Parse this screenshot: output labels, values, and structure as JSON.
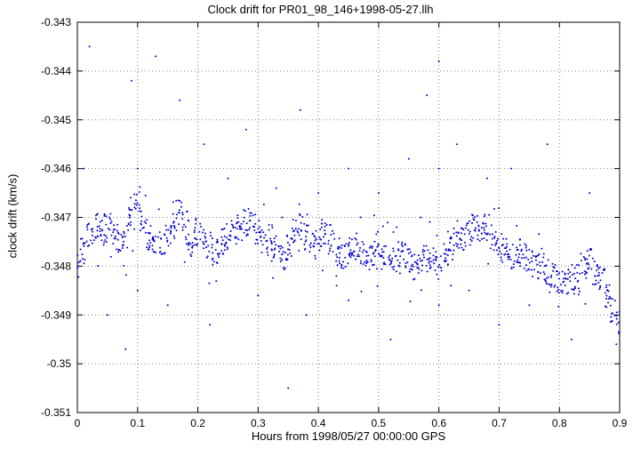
{
  "chart_data": {
    "type": "scatter",
    "title": "Clock drift for PR01_98_146+1998-05-27.llh",
    "xlabel": "Hours from 1998/05/27 00:00:00 GPS",
    "ylabel": "clock drift (km/s)",
    "xlim": [
      0,
      0.9
    ],
    "ylim": [
      -0.351,
      -0.343
    ],
    "grid": true,
    "legend_position": "none",
    "point_color": "#0000cc",
    "grid_color": "#808080",
    "axis_color": "#000000",
    "background": "#ffffff",
    "xticks": {
      "values": [
        0,
        0.1,
        0.2,
        0.3,
        0.4,
        0.5,
        0.6,
        0.7,
        0.8,
        0.9
      ],
      "labels": [
        "0",
        "0.1",
        "0.2",
        "0.3",
        "0.4",
        "0.5",
        "0.6",
        "0.7",
        "0.8",
        "0.9"
      ]
    },
    "yticks": {
      "values": [
        -0.351,
        -0.35,
        -0.349,
        -0.348,
        -0.347,
        -0.346,
        -0.345,
        -0.344,
        -0.343
      ],
      "labels": [
        "-0.351",
        "-0.35",
        "-0.349",
        "-0.348",
        "-0.347",
        "-0.346",
        "-0.345",
        "-0.344",
        "-0.343"
      ]
    },
    "series": [
      {
        "name": "clock drift",
        "style": "dense-dot-band",
        "trend_x": [
          0.0,
          0.01,
          0.02,
          0.03,
          0.04,
          0.05,
          0.06,
          0.07,
          0.08,
          0.09,
          0.1,
          0.11,
          0.12,
          0.13,
          0.14,
          0.15,
          0.16,
          0.17,
          0.18,
          0.19,
          0.2,
          0.21,
          0.22,
          0.23,
          0.24,
          0.25,
          0.26,
          0.27,
          0.28,
          0.29,
          0.3,
          0.31,
          0.32,
          0.33,
          0.34,
          0.35,
          0.36,
          0.37,
          0.38,
          0.39,
          0.4,
          0.41,
          0.42,
          0.43,
          0.44,
          0.45,
          0.46,
          0.47,
          0.48,
          0.49,
          0.5,
          0.51,
          0.52,
          0.53,
          0.54,
          0.55,
          0.56,
          0.57,
          0.58,
          0.59,
          0.6,
          0.61,
          0.62,
          0.63,
          0.64,
          0.65,
          0.66,
          0.67,
          0.68,
          0.69,
          0.7,
          0.71,
          0.72,
          0.73,
          0.74,
          0.75,
          0.76,
          0.77,
          0.78,
          0.79,
          0.8,
          0.81,
          0.82,
          0.83,
          0.84,
          0.85,
          0.86,
          0.87,
          0.88,
          0.89,
          0.9
        ],
        "trend_y": [
          -0.348,
          -0.3477,
          -0.3474,
          -0.3472,
          -0.3473,
          -0.3472,
          -0.3473,
          -0.3475,
          -0.3474,
          -0.347,
          -0.3466,
          -0.3471,
          -0.3474,
          -0.3476,
          -0.3475,
          -0.3474,
          -0.3472,
          -0.3469,
          -0.3473,
          -0.3475,
          -0.3473,
          -0.3474,
          -0.3476,
          -0.3477,
          -0.3475,
          -0.3474,
          -0.3473,
          -0.3472,
          -0.3471,
          -0.347,
          -0.3473,
          -0.3475,
          -0.3474,
          -0.3476,
          -0.3478,
          -0.3476,
          -0.3473,
          -0.3472,
          -0.3474,
          -0.3476,
          -0.3474,
          -0.3473,
          -0.3475,
          -0.3477,
          -0.3478,
          -0.3477,
          -0.3476,
          -0.3477,
          -0.3478,
          -0.3477,
          -0.3478,
          -0.3477,
          -0.3478,
          -0.3479,
          -0.3478,
          -0.3479,
          -0.348,
          -0.3479,
          -0.3478,
          -0.3479,
          -0.348,
          -0.3478,
          -0.3476,
          -0.3475,
          -0.3474,
          -0.3473,
          -0.3472,
          -0.3473,
          -0.3472,
          -0.3474,
          -0.3476,
          -0.3477,
          -0.3478,
          -0.3477,
          -0.3478,
          -0.3479,
          -0.348,
          -0.3479,
          -0.3481,
          -0.3482,
          -0.3483,
          -0.3484,
          -0.3483,
          -0.3482,
          -0.348,
          -0.3479,
          -0.3481,
          -0.3483,
          -0.3486,
          -0.3489,
          -0.3492
        ]
      }
    ],
    "outliers": [
      [
        0.02,
        -0.3435
      ],
      [
        0.13,
        -0.3437
      ],
      [
        0.09,
        -0.3442
      ],
      [
        0.17,
        -0.3446
      ],
      [
        0.28,
        -0.3452
      ],
      [
        0.21,
        -0.3455
      ],
      [
        0.58,
        -0.3445
      ],
      [
        0.6,
        -0.3438
      ],
      [
        0.01,
        -0.346
      ],
      [
        0.1,
        -0.346
      ],
      [
        0.25,
        -0.3462
      ],
      [
        0.33,
        -0.3464
      ],
      [
        0.37,
        -0.3448
      ],
      [
        0.4,
        -0.3465
      ],
      [
        0.45,
        -0.346
      ],
      [
        0.5,
        -0.3465
      ],
      [
        0.55,
        -0.3458
      ],
      [
        0.6,
        -0.346
      ],
      [
        0.63,
        -0.3455
      ],
      [
        0.68,
        -0.3462
      ],
      [
        0.72,
        -0.346
      ],
      [
        0.78,
        -0.3455
      ],
      [
        0.85,
        -0.3465
      ],
      [
        0.05,
        -0.349
      ],
      [
        0.08,
        -0.3497
      ],
      [
        0.1,
        -0.3485
      ],
      [
        0.15,
        -0.3488
      ],
      [
        0.22,
        -0.3492
      ],
      [
        0.3,
        -0.3486
      ],
      [
        0.35,
        -0.3505
      ],
      [
        0.38,
        -0.349
      ],
      [
        0.43,
        -0.3482
      ],
      [
        0.45,
        -0.3487
      ],
      [
        0.52,
        -0.3495
      ],
      [
        0.6,
        -0.3488
      ],
      [
        0.62,
        -0.3484
      ],
      [
        0.65,
        -0.3485
      ],
      [
        0.7,
        -0.3492
      ],
      [
        0.75,
        -0.3488
      ],
      [
        0.82,
        -0.3495
      ],
      [
        0.88,
        -0.3485
      ],
      [
        0.34,
        -0.347
      ],
      [
        0.47,
        -0.347
      ],
      [
        0.53,
        -0.3472
      ],
      [
        0.57,
        -0.347
      ]
    ]
  }
}
